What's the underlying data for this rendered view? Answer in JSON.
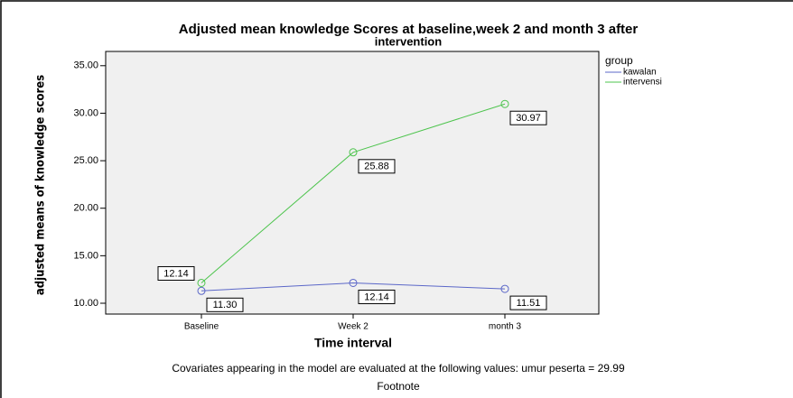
{
  "chart_data": {
    "type": "line",
    "title": [
      "Adjusted mean knowledge Scores at baseline,week 2 and month 3 after",
      "intervention"
    ],
    "x_label": "Time interval",
    "y_label": "adjusted means of knowledge scores",
    "categories": [
      "Baseline",
      "Week 2",
      "month 3"
    ],
    "series": [
      {
        "name": "kawalan",
        "color": "#5b67c8",
        "values": [
          11.3,
          12.14,
          11.51
        ],
        "value_labels": [
          "11.30",
          "12.14",
          "11.51"
        ]
      },
      {
        "name": "intervensi",
        "color": "#4dc44d",
        "values": [
          12.14,
          25.88,
          30.97
        ],
        "value_labels": [
          "12.14",
          "25.88",
          "30.97"
        ]
      }
    ],
    "ylim": [
      8.86,
      36.5
    ],
    "yticks": [
      {
        "value": 10,
        "label": "10.00"
      },
      {
        "value": 15,
        "label": "15.00"
      },
      {
        "value": 20,
        "label": "20.00"
      },
      {
        "value": 25,
        "label": "25.00"
      },
      {
        "value": 30,
        "label": "30.00"
      },
      {
        "value": 35,
        "label": "35.00"
      }
    ],
    "legend_title": "group",
    "legend_position": "right",
    "footnote_lines": [
      "Covariates appearing in the model are evaluated at the following values: umur peserta = 29.99",
      "Footnote"
    ]
  }
}
